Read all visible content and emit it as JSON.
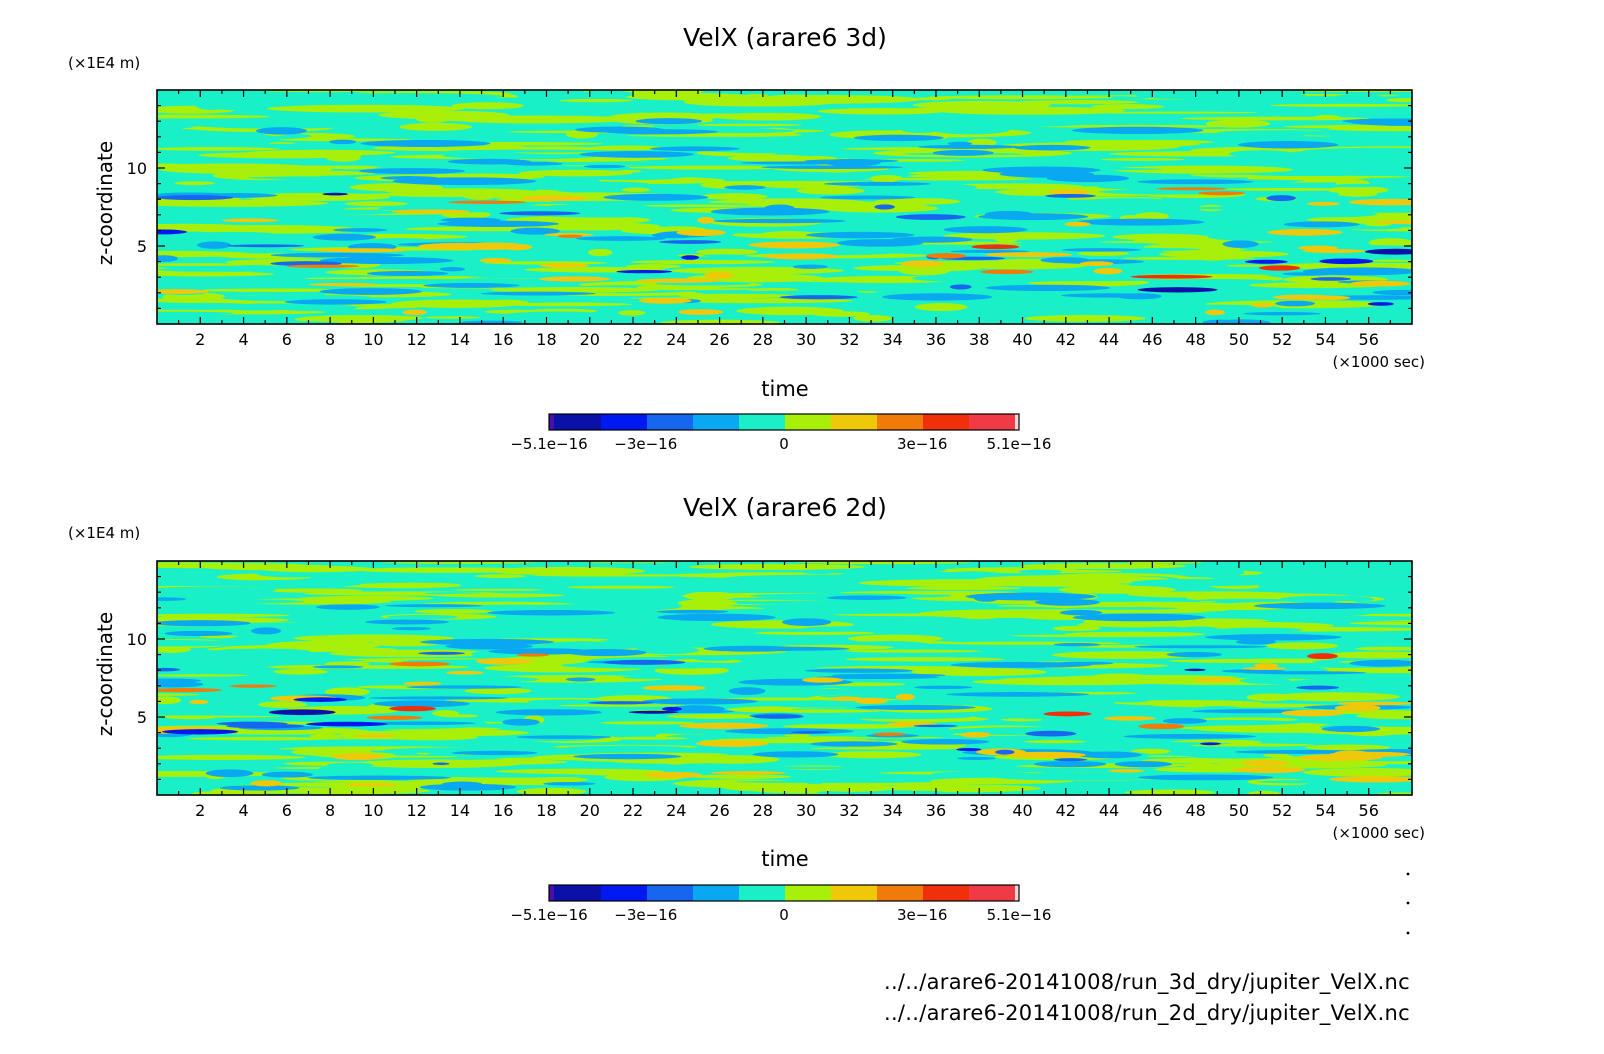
{
  "colors": {
    "background": "#ffffff",
    "axis": "#000000",
    "levels": [
      "#4a0fa8",
      "#0a10a8",
      "#0019f0",
      "#1766f0",
      "#0aa8f0",
      "#19f0c8",
      "#a8f00a",
      "#f0c80a",
      "#f07a0a",
      "#f0300a",
      "#f03a46",
      "#f0d8d8"
    ]
  },
  "chart_data": [
    {
      "type": "heatmap",
      "title": "VelX (arare6 3d)",
      "xlabel": "time",
      "x_unit": "(×1000 sec)",
      "ylabel": "z-coordinate",
      "y_unit": "(×1E4 m)",
      "xlim": [
        0,
        58
      ],
      "ylim": [
        0,
        15
      ],
      "x_ticks": [
        2,
        4,
        6,
        8,
        10,
        12,
        14,
        16,
        18,
        20,
        22,
        24,
        26,
        28,
        30,
        32,
        34,
        36,
        38,
        40,
        42,
        44,
        46,
        48,
        50,
        52,
        54,
        56
      ],
      "y_ticks": [
        5,
        10
      ],
      "colorbar": {
        "range": [
          -5.1e-16,
          5.1e-16
        ],
        "tick_values": [
          -5.1e-16,
          -3e-16,
          0,
          3e-16,
          5.1e-16
        ],
        "tick_labels": [
          "−5.1e−16",
          "−3e−16",
          "0",
          "3e−16",
          "5.1e−16"
        ]
      }
    },
    {
      "type": "heatmap",
      "title": "VelX (arare6 2d)",
      "xlabel": "time",
      "x_unit": "(×1000 sec)",
      "ylabel": "z-coordinate",
      "y_unit": "(×1E4 m)",
      "xlim": [
        0,
        58
      ],
      "ylim": [
        0,
        15
      ],
      "x_ticks": [
        2,
        4,
        6,
        8,
        10,
        12,
        14,
        16,
        18,
        20,
        22,
        24,
        26,
        28,
        30,
        32,
        34,
        36,
        38,
        40,
        42,
        44,
        46,
        48,
        50,
        52,
        54,
        56
      ],
      "y_ticks": [
        5,
        10
      ],
      "colorbar": {
        "range": [
          -5.1e-16,
          5.1e-16
        ],
        "tick_values": [
          -5.1e-16,
          -3e-16,
          0,
          3e-16,
          5.1e-16
        ],
        "tick_labels": [
          "−5.1e−16",
          "−3e−16",
          "0",
          "3e−16",
          "5.1e−16"
        ]
      }
    }
  ],
  "file_paths": [
    "../../arare6-20141008/run_3d_dry/jupiter_VelX.nc",
    "../../arare6-20141008/run_2d_dry/jupiter_VelX.nc"
  ]
}
